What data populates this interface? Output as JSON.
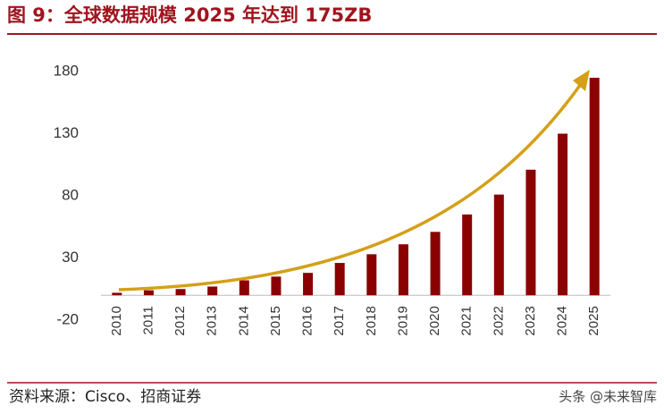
{
  "chart_data": {
    "type": "bar",
    "title": "图 9：全球数据规模 2025 年达到 175ZB",
    "source": "资料来源：Cisco、招商证券",
    "watermark": "头条 @未来智库",
    "categories": [
      "2010",
      "2011",
      "2012",
      "2013",
      "2014",
      "2015",
      "2016",
      "2017",
      "2018",
      "2019",
      "2020",
      "2021",
      "2022",
      "2023",
      "2024",
      "2025"
    ],
    "values": [
      2,
      4,
      5,
      7,
      12,
      15,
      18,
      26,
      33,
      41,
      51,
      65,
      81,
      101,
      130,
      175
    ],
    "color": "#8b0000",
    "ylim": [
      -20,
      180
    ],
    "yticks": [
      -20,
      30,
      80,
      130,
      180
    ],
    "grid": false
  }
}
